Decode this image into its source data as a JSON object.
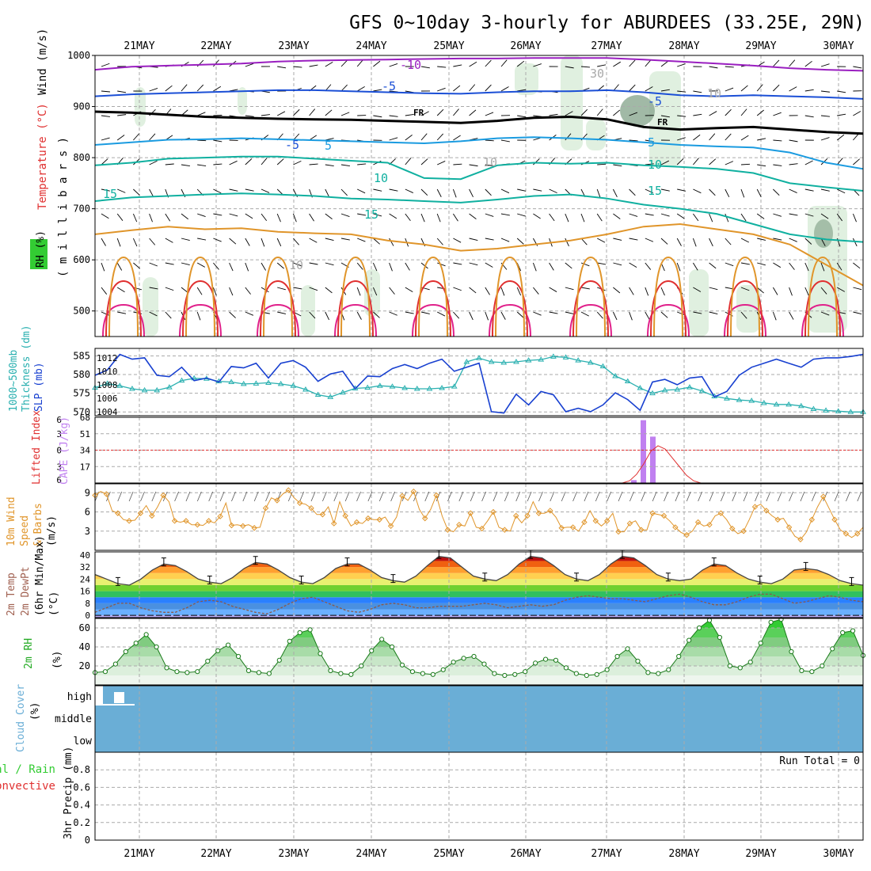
{
  "title": "GFS 0~10day 3-hourly for ABURDEES (33.25E, 29N)",
  "colors": {
    "purple": "#9a1fc0",
    "blue": "#1b4fd6",
    "skyblue": "#1a9be0",
    "teal": "#10b0a0",
    "orange": "#e0952a",
    "red": "#e03030",
    "magenta": "#e0208a",
    "cloud": "#6aaed6",
    "rh": "#33cc33",
    "cape": "#c080f0",
    "slp": "#1840d0",
    "thick": "#2ab0b0"
  },
  "chart_data": [
    {
      "type": "line",
      "panel": "upper-air",
      "title": "GFS 0~10day 3-hourly for ABURDEES (33.25E, 29N)",
      "x_tick_labels": [
        "21MAY",
        "22MAY",
        "23MAY",
        "24MAY",
        "25MAY",
        "26MAY",
        "27MAY",
        "28MAY",
        "29MAY",
        "30MAY"
      ],
      "ylabel_parts": [
        "RH (%)",
        "Temperature (°C)",
        "Wind (m/s)",
        "( m i l l i b a r s )"
      ],
      "y_ticks": [
        500,
        600,
        700,
        800,
        900,
        1000
      ],
      "y_tick_labels": [
        "500",
        "600",
        "700",
        "800",
        "900",
        "1000"
      ],
      "ylim": [
        450,
        1000
      ],
      "contour_labels": [
        "-10",
        "-5",
        "-5",
        "FR",
        "FR",
        "-5",
        "5",
        "5",
        "10",
        "10",
        "15",
        "15",
        "10",
        "10",
        "10",
        "30",
        "10"
      ],
      "series": [
        {
          "name": "-10",
          "values": [
            478,
            472,
            470,
            468,
            466,
            462,
            460,
            459,
            458,
            457,
            456,
            456,
            455,
            455,
            455,
            458,
            462,
            466,
            470,
            475,
            478,
            480
          ]
        },
        {
          "name": "-5",
          "values": [
            530,
            526,
            524,
            522,
            520,
            518,
            518,
            520,
            522,
            524,
            525,
            522,
            520,
            520,
            518,
            522,
            528,
            530,
            528,
            530,
            532,
            535
          ]
        },
        {
          "name": "FR",
          "values": [
            560,
            562,
            566,
            570,
            572,
            574,
            575,
            576,
            578,
            580,
            582,
            578,
            572,
            570,
            575,
            590,
            595,
            592,
            590,
            595,
            600,
            603
          ]
        },
        {
          "name": "5",
          "values": [
            625,
            620,
            615,
            614,
            612,
            614,
            616,
            618,
            620,
            622,
            618,
            612,
            610,
            612,
            615,
            620,
            625,
            628,
            630,
            640,
            660,
            672
          ]
        },
        {
          "name": "10",
          "values": [
            665,
            660,
            652,
            650,
            648,
            648,
            652,
            656,
            660,
            690,
            692,
            665,
            660,
            662,
            660,
            665,
            668,
            672,
            680,
            700,
            708,
            715
          ]
        },
        {
          "name": "15",
          "values": [
            735,
            728,
            725,
            722,
            720,
            722,
            725,
            730,
            732,
            735,
            738,
            732,
            725,
            722,
            730,
            742,
            750,
            760,
            780,
            800,
            810,
            815
          ]
        }
      ]
    },
    {
      "type": "line",
      "panel": "slp-thickness",
      "ylabel_left": "Thickness (dm)",
      "ylabel_left2": "1000~500mb",
      "ylabel_right": "SLP (mb)",
      "y_ticks_left": [
        570,
        575,
        580,
        585
      ],
      "y_ticks_right": [
        1004,
        1006,
        1008,
        1010,
        1012
      ],
      "ylim_left": [
        569,
        587
      ],
      "ylim_right": [
        1003.4,
        1013.4
      ],
      "series": [
        {
          "name": "SLP (mb)",
          "values": [
            1009.4,
            1010.2,
            1012.5,
            1011.8,
            1012.0,
            1009.4,
            1009.2,
            1010.6,
            1008.6,
            1009.0,
            1008.4,
            1010.7,
            1010.5,
            1011.2,
            1009.0,
            1011.2,
            1011.6,
            1010.6,
            1008.5,
            1009.6,
            1010.0,
            1007.4,
            1009.3,
            1009.2,
            1010.4,
            1011.0,
            1010.4,
            1011.2,
            1011.8,
            1010.0,
            1010.6,
            1011.2,
            1004.0,
            1003.8,
            1006.6,
            1005.0,
            1007.0,
            1006.5,
            1004.0,
            1004.5,
            1004.0,
            1005.0,
            1006.8,
            1005.8,
            1004.2,
            1008.4,
            1008.8,
            1008.0,
            1009.0,
            1009.2,
            1006.2,
            1007.0,
            1009.4,
            1010.6,
            1011.2,
            1011.8,
            1011.2,
            1010.6,
            1011.8,
            1012.0,
            1012.0,
            1012.2,
            1012.5
          ]
        },
        {
          "name": "Thickness (dm)",
          "values": [
            576.5,
            577.6,
            577.0,
            576.2,
            575.8,
            575.8,
            576.6,
            578.4,
            579.0,
            578.9,
            578.2,
            578.0,
            577.5,
            577.6,
            577.8,
            577.5,
            577.0,
            576.0,
            574.6,
            574.0,
            575.2,
            576.3,
            576.5,
            577.0,
            576.8,
            576.4,
            576.2,
            576.2,
            576.4,
            576.8,
            583.4,
            584.4,
            583.4,
            583.2,
            583.4,
            583.8,
            584.0,
            584.8,
            584.6,
            583.8,
            583.2,
            582.2,
            579.6,
            578.2,
            576.4,
            575.0,
            575.8,
            576.0,
            576.6,
            575.6,
            574.2,
            573.6,
            573.2,
            573.0,
            572.4,
            572.0,
            572.0,
            571.6,
            570.8,
            570.4,
            570.2,
            570.0,
            570.0
          ]
        }
      ]
    },
    {
      "type": "bar",
      "panel": "cape-li",
      "ylabel_left": "Lifted Index",
      "ylabel_right": "CAPE (J/kg)",
      "y_ticks_left": [
        "6",
        "3",
        "0",
        "3",
        "6"
      ],
      "y_ticks_right": [
        17,
        34,
        51,
        68
      ],
      "ylim_right": [
        0,
        68
      ],
      "cape_bars": [
        {
          "time": "27MAY 09Z",
          "value": 3
        },
        {
          "time": "27MAY 12Z",
          "value": 65
        },
        {
          "time": "27MAY 15Z",
          "value": 48
        }
      ],
      "lifted_index": [
        6,
        6,
        6,
        5.6,
        4.4,
        2.5,
        0.2,
        -0.8,
        -0.2,
        1.4,
        3.0,
        4.6,
        5.6,
        6,
        6
      ]
    },
    {
      "type": "line",
      "panel": "wind10m",
      "ylabel": [
        "10m Wind",
        "Speed",
        "& Barbs",
        "(m/s)"
      ],
      "y_ticks": [
        3,
        6,
        9
      ],
      "ylim": [
        0,
        10.4
      ],
      "series": [
        {
          "name": "10m Wind Speed",
          "values": [
            8.6,
            9.2,
            8.8,
            6.2,
            5.8,
            4.8,
            4.6,
            4.7,
            5.8,
            7.0,
            5.4,
            6.8,
            8.6,
            7.6,
            4.6,
            4.4,
            4.6,
            4.0,
            4.0,
            3.9,
            4.6,
            4.3,
            5.3,
            7.4,
            3.9,
            4.0,
            3.8,
            4.0,
            3.5,
            3.6,
            6.6,
            8.2,
            7.8,
            8.8,
            9.4,
            8.2,
            7.4,
            7.2,
            6.6,
            5.6,
            5.6,
            6.8,
            4.2,
            7.6,
            5.4,
            3.8,
            4.4,
            4.2,
            5.0,
            4.8,
            4.8,
            5.2,
            3.8,
            5.2,
            8.5,
            7.8,
            9.2,
            6.4,
            5.0,
            6.4,
            8.6,
            5.4,
            3.2,
            2.9,
            4.0,
            3.8,
            5.8,
            3.6,
            3.4,
            4.6,
            6.0,
            3.6,
            3.2,
            3.0,
            5.4,
            4.3,
            5.4,
            7.6,
            5.8,
            5.8,
            6.2,
            5.2,
            3.5,
            3.6,
            3.6,
            3.0,
            4.4,
            6.2,
            4.6,
            3.8,
            4.6,
            5.8,
            2.9,
            2.9,
            4.2,
            4.6,
            3.2,
            3.2,
            5.8,
            5.6,
            5.4,
            4.6,
            3.6,
            2.8,
            2.4,
            3.0,
            4.4,
            3.8,
            4.0,
            5.4,
            5.8,
            4.8,
            3.4,
            2.6,
            3.0,
            4.8,
            6.8,
            7.2,
            6.2,
            5.4,
            4.8,
            5.0,
            3.6,
            2.2,
            1.7,
            2.8,
            4.8,
            6.8,
            8.4,
            6.6,
            4.8,
            3.2,
            2.6,
            2.0,
            2.6,
            3.6
          ]
        }
      ]
    },
    {
      "type": "area",
      "panel": "temp2m",
      "ylabel": [
        "2m Temp",
        "2m DewPt",
        "(6hr Min/Max)",
        "(°C)"
      ],
      "y_ticks": [
        0,
        8,
        16,
        24,
        32,
        40
      ],
      "ylim": [
        -1.5,
        42
      ],
      "series": [
        {
          "name": "2m Temp",
          "values": [
            27,
            24,
            21,
            20,
            24,
            30,
            34,
            33,
            29,
            24,
            22,
            21,
            25,
            31,
            35,
            34,
            30,
            25,
            22,
            21,
            25,
            31,
            34,
            34,
            30,
            25,
            23,
            22,
            26,
            33,
            39,
            38,
            32,
            26,
            24,
            23,
            27,
            34,
            39,
            38,
            33,
            27,
            24,
            23,
            27,
            34,
            39,
            38,
            33,
            27,
            24,
            23,
            24,
            30,
            34,
            33,
            28,
            24,
            22,
            21,
            24,
            30,
            31,
            30,
            27,
            23,
            21,
            20
          ]
        },
        {
          "name": "2m DewPt",
          "values": [
            2,
            5,
            8,
            8,
            5,
            3,
            2,
            2,
            5,
            9,
            10,
            9,
            6,
            4,
            2,
            1,
            4,
            8,
            11,
            12,
            9,
            6,
            3,
            2,
            4,
            7,
            8,
            7,
            5,
            5,
            6,
            6,
            6,
            7,
            8,
            7,
            5,
            6,
            7,
            6,
            7,
            10,
            12,
            13,
            12,
            11,
            11,
            10,
            9,
            11,
            13,
            14,
            12,
            9,
            7,
            7,
            9,
            12,
            14,
            14,
            11,
            8,
            9,
            11,
            13,
            12,
            10,
            9
          ]
        }
      ]
    },
    {
      "type": "area",
      "panel": "rh2m",
      "ylabel": [
        "2m RH",
        "(%)"
      ],
      "y_ticks": [
        20,
        40,
        60
      ],
      "ylim": [
        0,
        70
      ],
      "series": [
        {
          "name": "2m RH",
          "values": [
            13,
            14,
            22,
            35,
            44,
            53,
            40,
            18,
            14,
            13,
            14,
            25,
            36,
            42,
            30,
            15,
            13,
            12,
            26,
            46,
            55,
            58,
            33,
            15,
            12,
            11,
            20,
            36,
            48,
            40,
            21,
            14,
            12,
            11,
            16,
            24,
            28,
            30,
            22,
            12,
            10,
            11,
            14,
            23,
            27,
            26,
            18,
            12,
            10,
            11,
            16,
            30,
            38,
            25,
            13,
            12,
            16,
            30,
            47,
            60,
            68,
            50,
            20,
            18,
            24,
            44,
            66,
            69,
            35,
            15,
            14,
            20,
            38,
            55,
            57,
            31
          ]
        }
      ]
    },
    {
      "type": "bar",
      "panel": "cloud",
      "ylabel": [
        "Cloud Cover",
        "(%)"
      ],
      "levels": [
        "high",
        "middle",
        "low"
      ],
      "note": "Full panel filled blue (background); small white high-cloud block near start of 21MAY"
    },
    {
      "type": "bar",
      "panel": "precip",
      "ylabel": [
        "3hr Precip (mm)"
      ],
      "legend_left": [
        "Total / Rain",
        "Convective"
      ],
      "y_ticks": [
        0,
        0.2,
        0.4,
        0.6,
        0.8
      ],
      "ylim": [
        0,
        1.0
      ],
      "run_total_label": "Run Total = 0",
      "values": []
    }
  ]
}
